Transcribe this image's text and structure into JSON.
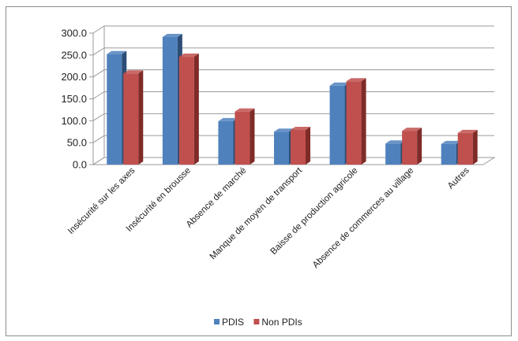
{
  "chart_data": {
    "type": "bar",
    "style": "3d-clustered-column",
    "categories": [
      "Insécurité sur les axes",
      "Insécurité en brousse",
      "Absence de marché",
      "Manque de moyen de transport",
      "Baisse de production agricole",
      "Absence de commerces au village",
      "Autres"
    ],
    "series": [
      {
        "name": "PDIS",
        "color": "#4f81bd",
        "side_color": "#2c4d75",
        "values": [
          252,
          291,
          99,
          75,
          180,
          48,
          47
        ]
      },
      {
        "name": "Non PDIs",
        "color": "#c0504d",
        "side_color": "#7f2b28",
        "values": [
          208,
          246,
          121,
          79,
          190,
          77,
          72
        ]
      }
    ],
    "ylim": [
      0,
      300
    ],
    "yticks": [
      "0.0",
      "50.0",
      "100.0",
      "150.0",
      "200.0",
      "250.0",
      "300.0"
    ],
    "grid": true,
    "legend": "bottom"
  }
}
